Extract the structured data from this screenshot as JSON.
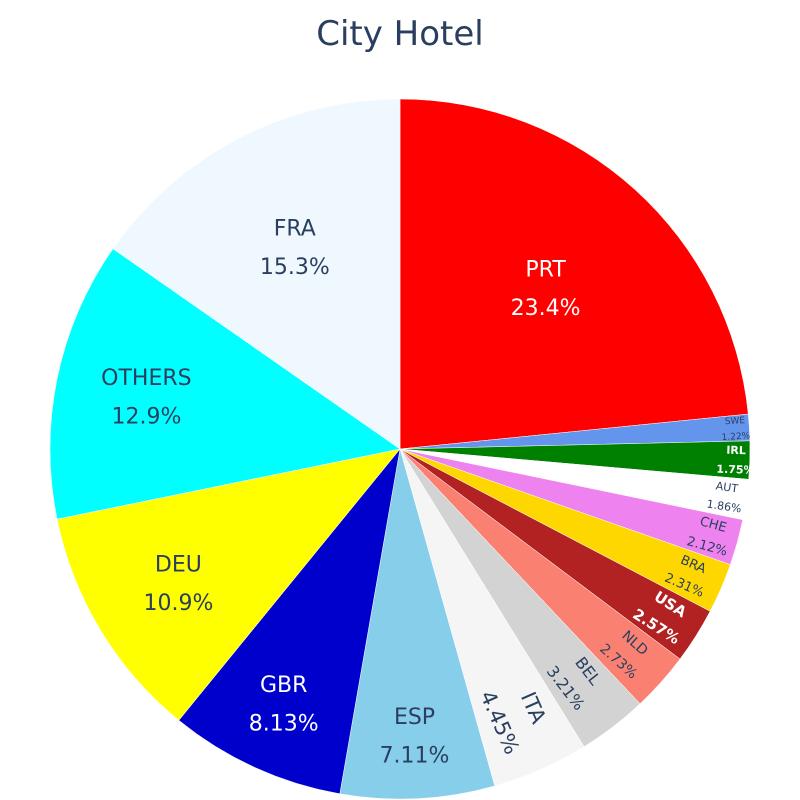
{
  "chart_data": {
    "type": "pie",
    "title": "City Hotel",
    "slices": [
      {
        "label": "PRT",
        "percent_text": "23.4%",
        "value": 23.4,
        "color": "#ff0000",
        "text_color": "#ffffff",
        "bold": false
      },
      {
        "label": "SWE",
        "percent_text": "1.22%",
        "value": 1.22,
        "color": "#6495ed",
        "text_color": "#2a3f5f",
        "bold": false
      },
      {
        "label": "IRL",
        "percent_text": "1.75%",
        "value": 1.75,
        "color": "#008000",
        "text_color": "#ffffff",
        "bold": true
      },
      {
        "label": "AUT",
        "percent_text": "1.86%",
        "value": 1.86,
        "color": "#ffffff",
        "text_color": "#2a3f5f",
        "bold": false
      },
      {
        "label": "CHE",
        "percent_text": "2.12%",
        "value": 2.12,
        "color": "#ee82ee",
        "text_color": "#2a3f5f",
        "bold": false
      },
      {
        "label": "BRA",
        "percent_text": "2.31%",
        "value": 2.31,
        "color": "#ffd700",
        "text_color": "#2a3f5f",
        "bold": false
      },
      {
        "label": "USA",
        "percent_text": "2.57%",
        "value": 2.57,
        "color": "#b22222",
        "text_color": "#ffffff",
        "bold": true
      },
      {
        "label": "NLD",
        "percent_text": "2.73%",
        "value": 2.73,
        "color": "#fa8072",
        "text_color": "#2a3f5f",
        "bold": false
      },
      {
        "label": "BEL",
        "percent_text": "3.21%",
        "value": 3.21,
        "color": "#d3d3d3",
        "text_color": "#2a3f5f",
        "bold": false
      },
      {
        "label": "ITA",
        "percent_text": "4.45%",
        "value": 4.45,
        "color": "#f5f5f5",
        "text_color": "#2a3f5f",
        "bold": false
      },
      {
        "label": "ESP",
        "percent_text": "7.11%",
        "value": 7.11,
        "color": "#87ceeb",
        "text_color": "#2a3f5f",
        "bold": false
      },
      {
        "label": "GBR",
        "percent_text": "8.13%",
        "value": 8.13,
        "color": "#0000cd",
        "text_color": "#ffffff",
        "bold": false
      },
      {
        "label": "DEU",
        "percent_text": "10.9%",
        "value": 10.9,
        "color": "#ffff00",
        "text_color": "#2a3f5f",
        "bold": false
      },
      {
        "label": "OTHERS",
        "percent_text": "12.9%",
        "value": 12.9,
        "color": "#00ffff",
        "text_color": "#2a3f5f",
        "bold": false
      },
      {
        "label": "FRA",
        "percent_text": "15.3%",
        "value": 15.3,
        "color": "#f0f8ff",
        "text_color": "#2a3f5f",
        "bold": false
      }
    ]
  }
}
